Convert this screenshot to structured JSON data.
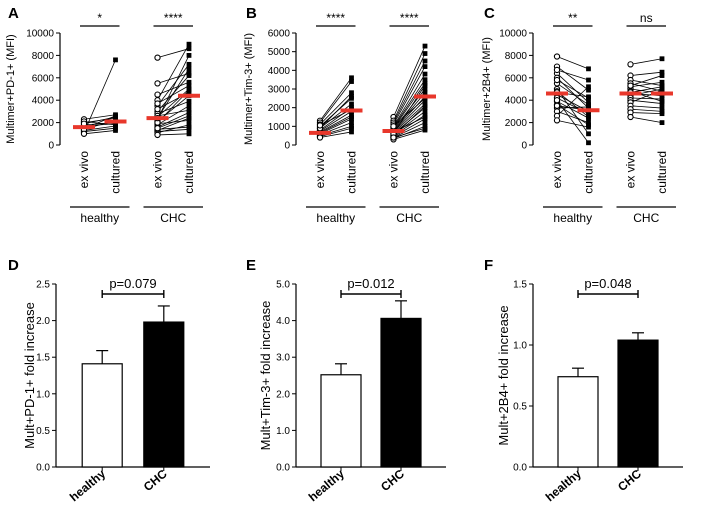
{
  "chart_data": [
    {
      "panel": "A",
      "type": "scatter",
      "ylabel": "Multimer+PD-1+ (MFI)",
      "ylim": [
        0,
        10000
      ],
      "yticks": [
        "0",
        "2000",
        "4000",
        "6000",
        "8000",
        "10000"
      ],
      "categories": [
        "ex vivo",
        "cultured",
        "ex vivo",
        "cultured"
      ],
      "groups": [
        "healthy",
        "CHC"
      ],
      "significance": [
        "*",
        "****"
      ],
      "medians": [
        1600,
        2100,
        2400,
        4400
      ],
      "pairs": {
        "healthy": [
          [
            1100,
            7600
          ],
          [
            1500,
            2600
          ],
          [
            1800,
            2000
          ],
          [
            2300,
            2700
          ],
          [
            1300,
            1700
          ],
          [
            2000,
            2400
          ],
          [
            1700,
            1900
          ],
          [
            1200,
            1500
          ],
          [
            1400,
            2200
          ],
          [
            2100,
            1800
          ],
          [
            1000,
            1300
          ],
          [
            1900,
            2500
          ]
        ],
        "CHC": [
          [
            5500,
            6400
          ],
          [
            7800,
            8600
          ],
          [
            4000,
            9000
          ],
          [
            3500,
            7200
          ],
          [
            3000,
            6200
          ],
          [
            2500,
            5000
          ],
          [
            2100,
            4400
          ],
          [
            1800,
            3500
          ],
          [
            1600,
            2900
          ],
          [
            1300,
            2400
          ],
          [
            1100,
            1800
          ],
          [
            4500,
            5600
          ],
          [
            2800,
            3900
          ],
          [
            1900,
            2200
          ],
          [
            1200,
            1400
          ],
          [
            3200,
            4700
          ],
          [
            2300,
            8000
          ],
          [
            2600,
            3100
          ],
          [
            1400,
            1600
          ],
          [
            2000,
            4900
          ],
          [
            3700,
            5300
          ],
          [
            1500,
            2600
          ],
          [
            2400,
            6800
          ],
          [
            900,
            1000
          ]
        ]
      }
    },
    {
      "panel": "B",
      "type": "scatter",
      "ylabel": "Multimer+Tim-3+ (MFI)",
      "ylim": [
        0,
        6000
      ],
      "yticks": [
        "0",
        "1000",
        "2000",
        "3000",
        "4000",
        "5000",
        "6000"
      ],
      "categories": [
        "ex vivo",
        "cultured",
        "ex vivo",
        "cultured"
      ],
      "groups": [
        "healthy",
        "CHC"
      ],
      "significance": [
        "****",
        "****"
      ],
      "medians": [
        650,
        1850,
        750,
        2600
      ],
      "pairs": {
        "healthy": [
          [
            1300,
            3600
          ],
          [
            1200,
            3400
          ],
          [
            1100,
            2800
          ],
          [
            1000,
            2500
          ],
          [
            900,
            2200
          ],
          [
            800,
            2000
          ],
          [
            750,
            1800
          ],
          [
            700,
            1600
          ],
          [
            650,
            1500
          ],
          [
            600,
            1400
          ],
          [
            550,
            1200
          ],
          [
            500,
            1000
          ],
          [
            450,
            900
          ],
          [
            400,
            700
          ],
          [
            900,
            2600
          ],
          [
            1050,
            1900
          ]
        ],
        "CHC": [
          [
            1500,
            5300
          ],
          [
            1300,
            4900
          ],
          [
            1200,
            4500
          ],
          [
            1100,
            4200
          ],
          [
            1000,
            3800
          ],
          [
            950,
            3500
          ],
          [
            900,
            3300
          ],
          [
            850,
            3000
          ],
          [
            800,
            2800
          ],
          [
            750,
            2600
          ],
          [
            700,
            2400
          ],
          [
            650,
            2200
          ],
          [
            600,
            2000
          ],
          [
            550,
            1800
          ],
          [
            500,
            1600
          ],
          [
            450,
            1400
          ],
          [
            400,
            1200
          ],
          [
            350,
            1000
          ],
          [
            300,
            800
          ],
          [
            1000,
            2500
          ],
          [
            700,
            1500
          ],
          [
            500,
            2100
          ],
          [
            600,
            3200
          ],
          [
            400,
            900
          ]
        ]
      }
    },
    {
      "panel": "C",
      "type": "scatter",
      "ylabel": "Multimer+2B4+ (MFI)",
      "ylim": [
        0,
        10000
      ],
      "yticks": [
        "0",
        "2000",
        "4000",
        "6000",
        "8000",
        "10000"
      ],
      "categories": [
        "ex vivo",
        "cultured",
        "ex vivo",
        "cultured"
      ],
      "groups": [
        "healthy",
        "CHC"
      ],
      "significance": [
        "**",
        "ns"
      ],
      "medians": [
        4600,
        3100,
        4600,
        4600
      ],
      "pairs": {
        "healthy": [
          [
            7900,
            6800
          ],
          [
            7000,
            4900
          ],
          [
            6400,
            3800
          ],
          [
            6000,
            3300
          ],
          [
            5500,
            3600
          ],
          [
            5000,
            1000
          ],
          [
            4800,
            2500
          ],
          [
            4500,
            3000
          ],
          [
            4200,
            2800
          ],
          [
            3900,
            2400
          ],
          [
            3600,
            1800
          ],
          [
            3300,
            3400
          ],
          [
            3000,
            2000
          ],
          [
            2600,
            5200
          ],
          [
            2200,
            1600
          ],
          [
            5800,
            4200
          ],
          [
            4000,
            200
          ],
          [
            3500,
            3100
          ],
          [
            6700,
            5800
          ],
          [
            4700,
            4300
          ]
        ],
        "CHC": [
          [
            7200,
            7700
          ],
          [
            6200,
            6500
          ],
          [
            5800,
            5300
          ],
          [
            5500,
            4800
          ],
          [
            5200,
            5600
          ],
          [
            5000,
            4600
          ],
          [
            4800,
            3900
          ],
          [
            4600,
            4400
          ],
          [
            4400,
            5000
          ],
          [
            4200,
            4100
          ],
          [
            4000,
            3700
          ],
          [
            3800,
            4900
          ],
          [
            3500,
            3300
          ],
          [
            3200,
            3000
          ],
          [
            2900,
            2800
          ],
          [
            2500,
            2000
          ],
          [
            5300,
            6200
          ],
          [
            4700,
            5200
          ]
        ]
      }
    },
    {
      "panel": "D",
      "type": "bar",
      "ylabel": "Mult+PD-1+ fold increase",
      "ylim": [
        0,
        2.5
      ],
      "yticks": [
        "0.0",
        "0.5",
        "1.0",
        "1.5",
        "2.0",
        "2.5"
      ],
      "categories": [
        "healthy",
        "CHC"
      ],
      "values": [
        1.41,
        1.98
      ],
      "errors": [
        0.18,
        0.22
      ],
      "fills": [
        "#ffffff",
        "#000000"
      ],
      "pvalue": "p=0.079"
    },
    {
      "panel": "E",
      "type": "bar",
      "ylabel": "Mult+Tim-3+ fold increase",
      "ylim": [
        0,
        5.0
      ],
      "yticks": [
        "0.0",
        "1.0",
        "2.0",
        "3.0",
        "4.0",
        "5.0"
      ],
      "categories": [
        "healthy",
        "CHC"
      ],
      "values": [
        2.52,
        4.06
      ],
      "errors": [
        0.3,
        0.48
      ],
      "fills": [
        "#ffffff",
        "#000000"
      ],
      "pvalue": "p=0.012"
    },
    {
      "panel": "F",
      "type": "bar",
      "ylabel": "Mult+2B4+ fold increase",
      "ylim": [
        0,
        1.5
      ],
      "yticks": [
        "0.0",
        "0.5",
        "1.0",
        "1.5"
      ],
      "categories": [
        "healthy",
        "CHC"
      ],
      "values": [
        0.74,
        1.04
      ],
      "errors": [
        0.07,
        0.06
      ],
      "fills": [
        "#ffffff",
        "#000000"
      ],
      "pvalue": "p=0.048"
    }
  ],
  "colors": {
    "median": "#e8372b",
    "line": "#000000"
  }
}
